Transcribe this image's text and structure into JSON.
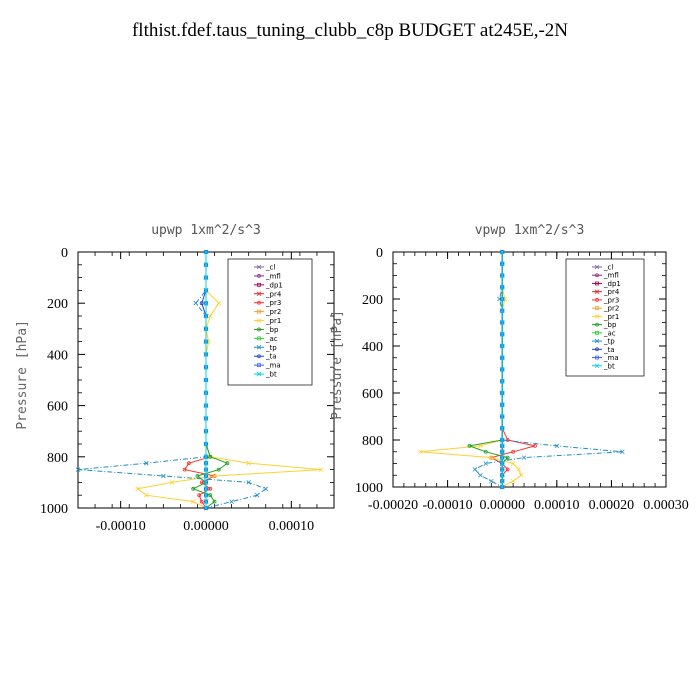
{
  "page_title": "flthist.fdef.taus_tuning_clubb_c8p  BUDGET at245E,-2N",
  "chart_data": [
    {
      "type": "line",
      "title": "upwp   1xm^2/s^3",
      "ylabel": "Pressure [hPa]",
      "xlim": [
        -0.00015,
        0.00015
      ],
      "ylim": [
        1000,
        0
      ],
      "xticks": [
        -0.0001,
        0.0,
        0.0001
      ],
      "xtick_labels": [
        "-0.00010",
        "0.00000",
        "0.00010"
      ],
      "yticks": [
        0,
        200,
        400,
        600,
        800,
        1000
      ],
      "ytick_labels": [
        "0",
        "200",
        "400",
        "600",
        "800",
        "1000"
      ],
      "legend_position": "top-right",
      "levels": [
        0,
        50,
        100,
        150,
        200,
        250,
        300,
        350,
        400,
        450,
        500,
        550,
        600,
        650,
        700,
        750,
        800,
        825,
        850,
        875,
        900,
        925,
        950,
        975,
        1000
      ],
      "series": [
        {
          "name": "_cl",
          "color": "#7f5fa0",
          "values": [
            0,
            0,
            0,
            0,
            0,
            0,
            0,
            0,
            0,
            0,
            0,
            0,
            0,
            0,
            0,
            0,
            0,
            0,
            0,
            0,
            0,
            0,
            0,
            0,
            0
          ]
        },
        {
          "name": "_mfl",
          "color": "#8a2a8a",
          "values": [
            0,
            0,
            0,
            0,
            0,
            0,
            0,
            0,
            0,
            0,
            0,
            0,
            0,
            0,
            0,
            0,
            0,
            0,
            0,
            0,
            0,
            0,
            0,
            0,
            0
          ]
        },
        {
          "name": "_dp1",
          "color": "#b00050",
          "values": [
            0,
            0,
            0,
            0,
            0,
            0,
            0,
            0,
            0,
            0,
            0,
            0,
            0,
            0,
            0,
            0,
            0,
            0,
            0,
            0,
            0,
            0,
            0,
            0,
            0
          ]
        },
        {
          "name": "_pr4",
          "color": "#e02020",
          "values": [
            0,
            0,
            0,
            0,
            0,
            0,
            0,
            0,
            0,
            0,
            0,
            0,
            0,
            0,
            0,
            0,
            0,
            0,
            0,
            0,
            0,
            0,
            0,
            0,
            0
          ]
        },
        {
          "name": "_pr3",
          "color": "#ff3030",
          "values": [
            0,
            0,
            0,
            0,
            0,
            0,
            0,
            0,
            0,
            0,
            0,
            0,
            0,
            0,
            0,
            0,
            5e-06,
            -2e-05,
            -2.5e-05,
            1e-05,
            -5e-06,
            5e-06,
            -8e-06,
            -5e-06,
            0
          ]
        },
        {
          "name": "_pr2",
          "color": "#f0a030",
          "values": [
            0,
            0,
            0,
            0,
            0,
            0,
            0,
            0,
            0,
            0,
            0,
            0,
            0,
            0,
            0,
            0,
            0,
            0,
            0,
            0,
            0,
            0,
            0,
            0,
            0
          ]
        },
        {
          "name": "_pr1",
          "color": "#ffd030",
          "values": [
            0,
            0,
            0,
            0,
            1.5e-05,
            5e-06,
            0,
            3e-06,
            0,
            0,
            0,
            0,
            0,
            0,
            0,
            0,
            5e-06,
            5e-05,
            0.000135,
            1e-05,
            -4e-05,
            -8e-05,
            -7e-05,
            -1.5e-05,
            0
          ]
        },
        {
          "name": "_bp",
          "color": "#20a020",
          "values": [
            0,
            0,
            0,
            0,
            0,
            0,
            0,
            0,
            0,
            0,
            0,
            0,
            0,
            0,
            0,
            0,
            5e-06,
            2.5e-05,
            1.5e-05,
            -1e-05,
            0,
            -1.5e-05,
            5e-06,
            1e-05,
            0
          ]
        },
        {
          "name": "_ac",
          "color": "#30d030",
          "values": [
            0,
            0,
            0,
            0,
            0,
            0,
            0,
            0,
            0,
            0,
            0,
            0,
            0,
            0,
            0,
            0,
            0,
            0,
            0,
            0,
            0,
            0,
            0,
            0,
            0
          ]
        },
        {
          "name": "_tp",
          "color": "#2090c0",
          "values": [
            0,
            0,
            0,
            0,
            -1.2e-05,
            0,
            0,
            0,
            0,
            0,
            0,
            0,
            0,
            0,
            0,
            0,
            0,
            -7e-05,
            -0.00015,
            -5e-05,
            5e-05,
            7e-05,
            6e-05,
            3e-05,
            0
          ]
        },
        {
          "name": "_ta",
          "color": "#2040d0",
          "values": [
            0,
            0,
            0,
            0,
            -5e-06,
            0,
            0,
            0,
            0,
            0,
            0,
            0,
            0,
            0,
            0,
            0,
            0,
            0,
            0,
            0,
            0,
            0,
            0,
            0,
            0
          ]
        },
        {
          "name": "_ma",
          "color": "#4060ff",
          "values": [
            0,
            0,
            0,
            0,
            0,
            0,
            0,
            0,
            0,
            0,
            0,
            0,
            0,
            0,
            0,
            0,
            0,
            0,
            0,
            0,
            0,
            0,
            0,
            0,
            0
          ]
        },
        {
          "name": "_bt",
          "color": "#00d0e0",
          "values": [
            0,
            0,
            0,
            0,
            0,
            0,
            0,
            0,
            0,
            0,
            0,
            0,
            0,
            0,
            0,
            0,
            0,
            0,
            0,
            0,
            0,
            0,
            0,
            0,
            0
          ]
        }
      ]
    },
    {
      "type": "line",
      "title": "vpwp   1xm^2/s^3",
      "ylabel": "Pressure [hPa]",
      "xlim": [
        -0.0002,
        0.0003
      ],
      "ylim": [
        1000,
        0
      ],
      "xticks": [
        -0.0002,
        -0.0001,
        0.0,
        0.0001,
        0.0002,
        0.0003
      ],
      "xtick_labels": [
        "-0.00020",
        "-0.00010",
        "0.00000",
        "0.00010",
        "0.00020",
        "0.00030"
      ],
      "yticks": [
        0,
        200,
        400,
        600,
        800,
        1000
      ],
      "ytick_labels": [
        "0",
        "200",
        "400",
        "600",
        "800",
        "1000"
      ],
      "legend_position": "top-right",
      "levels": [
        0,
        50,
        100,
        150,
        200,
        250,
        300,
        350,
        400,
        450,
        500,
        550,
        600,
        650,
        700,
        750,
        800,
        825,
        850,
        875,
        900,
        925,
        950,
        975,
        1000
      ],
      "series": [
        {
          "name": "_cl",
          "color": "#7f5fa0",
          "values": [
            0,
            0,
            0,
            0,
            0,
            0,
            0,
            0,
            0,
            0,
            0,
            0,
            0,
            0,
            0,
            0,
            0,
            0,
            0,
            0,
            0,
            0,
            0,
            0,
            0
          ]
        },
        {
          "name": "_mfl",
          "color": "#8a2a8a",
          "values": [
            0,
            0,
            0,
            0,
            0,
            0,
            0,
            0,
            0,
            0,
            0,
            0,
            0,
            0,
            0,
            0,
            0,
            0,
            0,
            0,
            0,
            0,
            0,
            0,
            0
          ]
        },
        {
          "name": "_dp1",
          "color": "#b00050",
          "values": [
            0,
            0,
            0,
            0,
            0,
            0,
            0,
            0,
            0,
            0,
            0,
            0,
            0,
            0,
            0,
            0,
            0,
            0,
            0,
            0,
            0,
            0,
            0,
            0,
            0
          ]
        },
        {
          "name": "_pr4",
          "color": "#e02020",
          "values": [
            0,
            0,
            0,
            0,
            0,
            0,
            0,
            0,
            0,
            0,
            0,
            0,
            0,
            0,
            0,
            0,
            0,
            0,
            0,
            0,
            0,
            0,
            0,
            0,
            0
          ]
        },
        {
          "name": "_pr3",
          "color": "#ff3030",
          "values": [
            0,
            0,
            0,
            0,
            0,
            0,
            0,
            0,
            0,
            0,
            0,
            0,
            0,
            0,
            0,
            0,
            1e-05,
            6e-05,
            2e-05,
            -2e-05,
            0,
            1e-05,
            0,
            0,
            0
          ]
        },
        {
          "name": "_pr2",
          "color": "#f0a030",
          "values": [
            0,
            0,
            0,
            0,
            0,
            0,
            0,
            0,
            0,
            0,
            0,
            0,
            0,
            0,
            0,
            0,
            0,
            0,
            0,
            0,
            0,
            0,
            0,
            0,
            0
          ]
        },
        {
          "name": "_pr1",
          "color": "#ffd030",
          "values": [
            0,
            0,
            0,
            0,
            5e-06,
            0,
            0,
            0,
            0,
            0,
            0,
            0,
            0,
            0,
            0,
            0,
            0,
            -4e-05,
            -0.00015,
            -2e-05,
            2e-05,
            3e-05,
            3.5e-05,
            2e-05,
            0
          ]
        },
        {
          "name": "_bp",
          "color": "#20a020",
          "values": [
            0,
            0,
            0,
            0,
            0,
            0,
            0,
            0,
            0,
            0,
            0,
            0,
            0,
            0,
            0,
            0,
            0,
            -6e-05,
            -3e-05,
            1e-05,
            0,
            0,
            0,
            0,
            0
          ]
        },
        {
          "name": "_ac",
          "color": "#30d030",
          "values": [
            0,
            0,
            0,
            0,
            0,
            0,
            0,
            0,
            0,
            0,
            0,
            0,
            0,
            0,
            0,
            0,
            0,
            0,
            0,
            0,
            0,
            0,
            0,
            0,
            0
          ]
        },
        {
          "name": "_tp",
          "color": "#2090c0",
          "values": [
            0,
            0,
            0,
            0,
            -5e-06,
            0,
            0,
            0,
            0,
            0,
            0,
            0,
            0,
            0,
            0,
            0,
            0,
            0.0001,
            0.00022,
            4e-05,
            -3e-05,
            -5e-05,
            -4e-05,
            -2e-05,
            0
          ]
        },
        {
          "name": "_ta",
          "color": "#2040d0",
          "values": [
            0,
            0,
            0,
            0,
            0,
            0,
            0,
            0,
            0,
            0,
            0,
            0,
            0,
            0,
            0,
            0,
            0,
            0,
            0,
            0,
            0,
            0,
            0,
            0,
            0
          ]
        },
        {
          "name": "_ma",
          "color": "#4060ff",
          "values": [
            0,
            0,
            0,
            0,
            0,
            0,
            0,
            0,
            0,
            0,
            0,
            0,
            0,
            0,
            0,
            0,
            0,
            0,
            0,
            0,
            0,
            0,
            0,
            0,
            0
          ]
        },
        {
          "name": "_bt",
          "color": "#00d0e0",
          "values": [
            0,
            0,
            0,
            0,
            0,
            0,
            0,
            0,
            0,
            0,
            0,
            0,
            0,
            0,
            0,
            0,
            0,
            0,
            0,
            0,
            0,
            0,
            0,
            0,
            0
          ]
        }
      ]
    }
  ]
}
